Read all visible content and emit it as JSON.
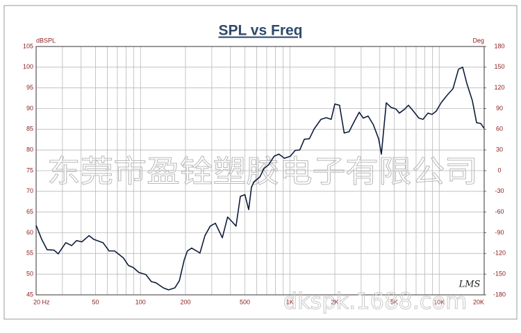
{
  "chart_data": {
    "type": "line",
    "title": "SPL vs Freq",
    "y_label": "dBSPL",
    "y2_label": "Deg",
    "log_x": true,
    "grid": true,
    "color": "#0d1b3a",
    "x": [
      20,
      21.8,
      23.7,
      26.4,
      28.1,
      31.6,
      34.6,
      37.3,
      40.5,
      45.2,
      48.6,
      56.1,
      61.6,
      67.1,
      76.9,
      83,
      89.4,
      97.5,
      108.6,
      118,
      127,
      142,
      154,
      170,
      182,
      196,
      206,
      220,
      250,
      270,
      293,
      317,
      353,
      383,
      412,
      436,
      466,
      500,
      530,
      553,
      575,
      630,
      670,
      720,
      785,
      845,
      920,
      1008,
      1085,
      1165,
      1250,
      1350,
      1455,
      1615,
      1755,
      1890,
      2000,
      2150,
      2310,
      2490,
      2700,
      2910,
      3100,
      3340,
      3620,
      3930,
      4100,
      4420,
      4750,
      5130,
      5410,
      5840,
      6220,
      6710,
      7310,
      7790,
      8400,
      8960,
      9560,
      10300,
      11220,
      12360,
      13460,
      14350,
      15300,
      16670,
      17790,
      18960,
      20000
    ],
    "values": [
      61.8,
      58.4,
      55.9,
      55.8,
      54.9,
      57.6,
      56.9,
      58.1,
      57.8,
      59.3,
      58.4,
      57.6,
      55.6,
      55.6,
      53.9,
      52.1,
      51.6,
      50.4,
      49.9,
      48.2,
      47.9,
      46.7,
      46.2,
      46.7,
      48.4,
      53.4,
      55.6,
      56.3,
      55.1,
      59.3,
      61.6,
      62.3,
      58.8,
      63.8,
      62.6,
      61.6,
      68.8,
      69.2,
      65.6,
      71.0,
      72.3,
      73.5,
      75.5,
      76.4,
      78.5,
      79.0,
      78.0,
      78.5,
      79.9,
      80.0,
      82.6,
      82.7,
      85.1,
      87.4,
      87.8,
      87.4,
      91.1,
      90.8,
      84.1,
      84.4,
      86.9,
      89.1,
      87.7,
      88.2,
      86.1,
      82.7,
      79.0,
      91.4,
      90.3,
      89.9,
      88.9,
      89.8,
      90.8,
      89.4,
      87.7,
      87.4,
      88.9,
      88.6,
      89.4,
      91.4,
      93.1,
      94.8,
      99.5,
      100.0,
      96.1,
      91.9,
      86.6,
      86.4,
      85.2
    ],
    "xlim": [
      20,
      20000
    ],
    "xticks": [
      {
        "value": 20,
        "label": "20 Hz"
      },
      50,
      100,
      200,
      500,
      {
        "value": 1000,
        "label": "1K"
      },
      {
        "value": 2000,
        "label": "2K"
      },
      {
        "value": 5000,
        "label": "5K"
      },
      {
        "value": 10000,
        "label": "10K"
      },
      {
        "value": 20000,
        "label": "20K"
      }
    ],
    "xminor": [
      30,
      40,
      60,
      70,
      80,
      90,
      300,
      400,
      600,
      700,
      800,
      900,
      3000,
      4000,
      6000,
      7000,
      8000,
      9000
    ],
    "ylim": [
      45,
      105
    ],
    "yticks": [
      45,
      50,
      55,
      60,
      65,
      70,
      75,
      80,
      85,
      90,
      95,
      100,
      105
    ],
    "y2lim": [
      -180,
      180
    ],
    "y2ticks": [
      -180,
      -150,
      -120,
      -90,
      -60,
      -30,
      0,
      30,
      60,
      90,
      120,
      150,
      180
    ],
    "annotations": [
      "LMS",
      "东莞市盈铨塑胶电子有限公司",
      "dkspk.1688.com"
    ]
  }
}
